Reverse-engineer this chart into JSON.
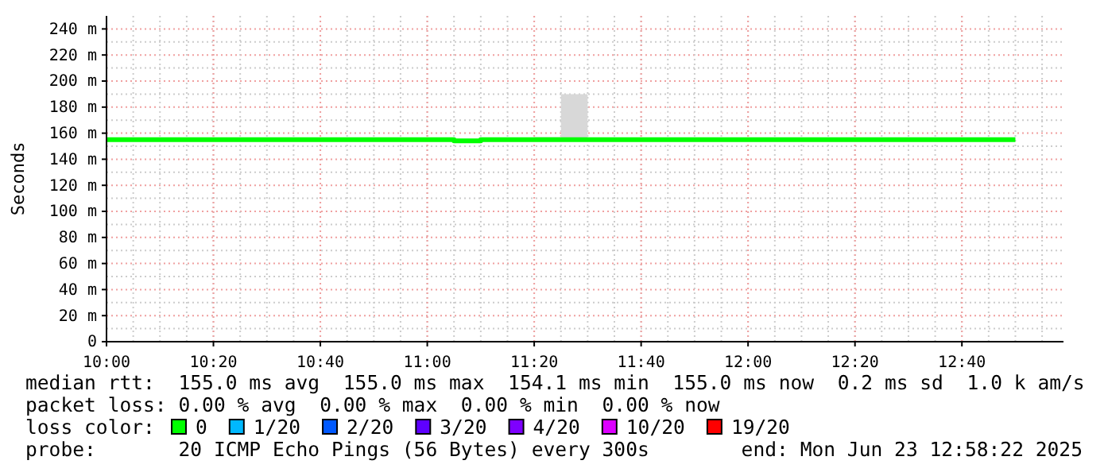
{
  "chart_data": {
    "type": "step",
    "ylabel": "Seconds",
    "legend_title": "loss color:",
    "legend": "bottom",
    "grid": true,
    "x": [
      "2025-06-23T10:00",
      "2025-06-23T10:05",
      "2025-06-23T10:10",
      "2025-06-23T10:15",
      "2025-06-23T10:20",
      "2025-06-23T10:25",
      "2025-06-23T10:30",
      "2025-06-23T10:35",
      "2025-06-23T10:40",
      "2025-06-23T10:45",
      "2025-06-23T10:50",
      "2025-06-23T10:55",
      "2025-06-23T11:00",
      "2025-06-23T11:05",
      "2025-06-23T11:10",
      "2025-06-23T11:15",
      "2025-06-23T11:20",
      "2025-06-23T11:25",
      "2025-06-23T11:30",
      "2025-06-23T11:35",
      "2025-06-23T11:40",
      "2025-06-23T11:45",
      "2025-06-23T11:50",
      "2025-06-23T11:55",
      "2025-06-23T12:00",
      "2025-06-23T12:05",
      "2025-06-23T12:10",
      "2025-06-23T12:15",
      "2025-06-23T12:20",
      "2025-06-23T12:25",
      "2025-06-23T12:30",
      "2025-06-23T12:35",
      "2025-06-23T12:40",
      "2025-06-23T12:45",
      "2025-06-23T12:50"
    ],
    "series": [
      {
        "name": "0",
        "color": "#00ff00",
        "values": [
          155,
          155,
          155,
          155,
          155,
          155,
          155,
          155,
          155,
          155,
          155,
          155,
          155,
          154.1,
          155,
          155,
          155,
          155,
          155,
          155,
          155,
          155,
          155,
          155,
          155,
          155,
          155,
          155,
          155,
          155,
          155,
          155,
          155,
          155,
          155
        ],
        "lower": [
          null,
          null,
          null,
          null,
          null,
          null,
          null,
          null,
          null,
          null,
          null,
          null,
          null,
          null,
          null,
          null,
          155,
          155,
          155,
          null,
          null,
          null,
          null,
          null,
          null,
          null,
          null,
          null,
          null,
          null,
          null,
          null,
          null,
          null,
          null
        ],
        "upper": [
          null,
          null,
          null,
          null,
          null,
          null,
          null,
          null,
          null,
          null,
          null,
          null,
          null,
          null,
          null,
          null,
          157,
          190,
          155,
          null,
          null,
          null,
          null,
          null,
          null,
          null,
          null,
          null,
          null,
          null,
          null,
          null,
          null,
          null,
          null
        ]
      },
      {
        "name": "1/20",
        "color": "#00b8ff",
        "values": [
          null,
          null,
          null,
          null,
          null,
          null,
          null,
          null,
          null,
          null,
          null,
          null,
          null,
          null,
          null,
          null,
          null,
          null,
          null,
          null,
          null,
          null,
          null,
          null,
          null,
          null,
          null,
          null,
          null,
          null,
          null,
          null,
          null,
          null,
          null
        ]
      },
      {
        "name": "2/20",
        "color": "#0059ff",
        "values": [
          null,
          null,
          null,
          null,
          null,
          null,
          null,
          null,
          null,
          null,
          null,
          null,
          null,
          null,
          null,
          null,
          null,
          null,
          null,
          null,
          null,
          null,
          null,
          null,
          null,
          null,
          null,
          null,
          null,
          null,
          null,
          null,
          null,
          null,
          null
        ]
      },
      {
        "name": "3/20",
        "color": "#5e00ff",
        "values": [
          null,
          null,
          null,
          null,
          null,
          null,
          null,
          null,
          null,
          null,
          null,
          null,
          null,
          null,
          null,
          null,
          null,
          null,
          null,
          null,
          null,
          null,
          null,
          null,
          null,
          null,
          null,
          null,
          null,
          null,
          null,
          null,
          null,
          null,
          null
        ]
      },
      {
        "name": "4/20",
        "color": "#7e00ff",
        "values": [
          null,
          null,
          null,
          null,
          null,
          null,
          null,
          null,
          null,
          null,
          null,
          null,
          null,
          null,
          null,
          null,
          null,
          null,
          null,
          null,
          null,
          null,
          null,
          null,
          null,
          null,
          null,
          null,
          null,
          null,
          null,
          null,
          null,
          null,
          null
        ]
      },
      {
        "name": "10/20",
        "color": "#dd00ff",
        "values": [
          null,
          null,
          null,
          null,
          null,
          null,
          null,
          null,
          null,
          null,
          null,
          null,
          null,
          null,
          null,
          null,
          null,
          null,
          null,
          null,
          null,
          null,
          null,
          null,
          null,
          null,
          null,
          null,
          null,
          null,
          null,
          null,
          null,
          null,
          null
        ]
      },
      {
        "name": "19/20",
        "color": "#ff0000",
        "values": [
          null,
          null,
          null,
          null,
          null,
          null,
          null,
          null,
          null,
          null,
          null,
          null,
          null,
          null,
          null,
          null,
          null,
          null,
          null,
          null,
          null,
          null,
          null,
          null,
          null,
          null,
          null,
          null,
          null,
          null,
          null,
          null,
          null,
          null,
          null
        ]
      }
    ],
    "xlim": [
      "2025-06-23T10:00",
      "2025-06-23T12:59"
    ],
    "xticks": [
      {
        "value": "2025-06-23T10:00",
        "label": "10:00"
      },
      {
        "value": "2025-06-23T10:20",
        "label": "10:20"
      },
      {
        "value": "2025-06-23T10:40",
        "label": "10:40"
      },
      {
        "value": "2025-06-23T11:00",
        "label": "11:00"
      },
      {
        "value": "2025-06-23T11:20",
        "label": "11:20"
      },
      {
        "value": "2025-06-23T11:40",
        "label": "11:40"
      },
      {
        "value": "2025-06-23T12:00",
        "label": "12:00"
      },
      {
        "value": "2025-06-23T12:20",
        "label": "12:20"
      },
      {
        "value": "2025-06-23T12:40",
        "label": "12:40"
      }
    ],
    "ylim": [
      0,
      250
    ],
    "yticks": [
      0,
      {
        "value": 20,
        "label": "20 m"
      },
      {
        "value": 40,
        "label": "40 m"
      },
      {
        "value": 60,
        "label": "60 m"
      },
      {
        "value": 80,
        "label": "80 m"
      },
      {
        "value": 100,
        "label": "100 m"
      },
      {
        "value": 120,
        "label": "120 m"
      },
      {
        "value": 140,
        "label": "140 m"
      },
      {
        "value": 160,
        "label": "160 m"
      },
      {
        "value": 180,
        "label": "180 m"
      },
      {
        "value": 200,
        "label": "200 m"
      },
      {
        "value": 220,
        "label": "220 m"
      },
      {
        "value": 240,
        "label": "240 m"
      }
    ],
    "annotations": [
      "median rtt:  155.0 ms avg  155.0 ms max  154.1 ms min  155.0 ms now  0.2 ms sd  1.0 k am/s",
      "packet loss: 0.00 % avg  0.00 % max  0.00 % min  0.00 % now",
      "probe:       20 ICMP Echo Pings (56 Bytes) every 300s",
      "end: Mon Jun 23 12:58:22 2025"
    ]
  }
}
